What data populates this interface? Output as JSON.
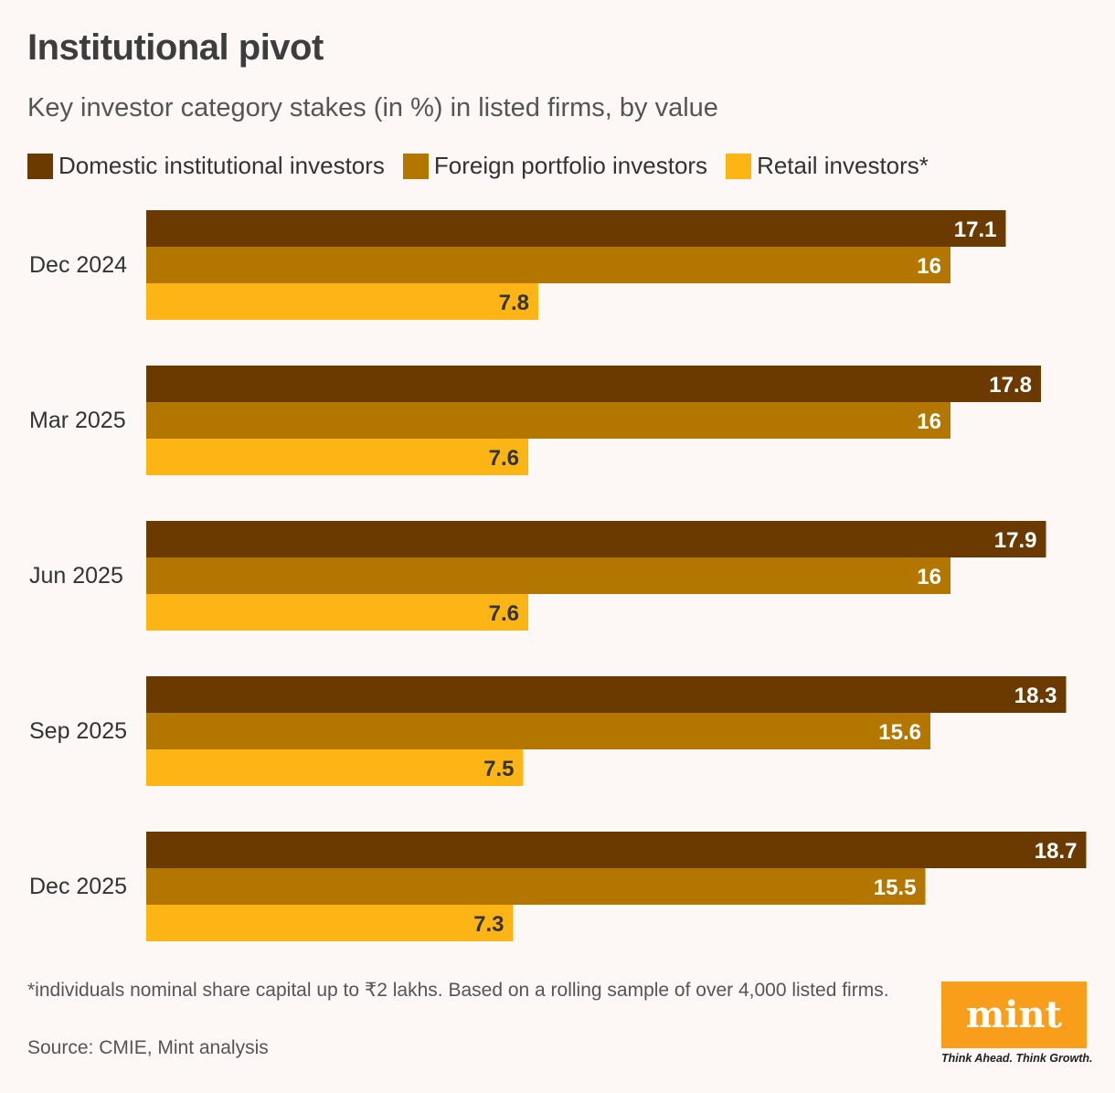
{
  "header": {
    "title": "Institutional pivot",
    "subtitle": "Key investor category stakes (in %) in listed firms, by value"
  },
  "chart_data": {
    "type": "bar",
    "orientation": "horizontal",
    "title": "Institutional pivot",
    "subtitle": "Key investor category stakes (in %) in listed firms, by value",
    "categories": [
      "Dec 2024",
      "Mar 2025",
      "Jun 2025",
      "Sep 2025",
      "Dec 2025"
    ],
    "series": [
      {
        "name": "Domestic institutional investors",
        "color": "#6b3a00",
        "label_color": "#ffffff",
        "values": [
          17.1,
          17.8,
          17.9,
          18.3,
          18.7
        ]
      },
      {
        "name": "Foreign portfolio investors",
        "color": "#b37700",
        "label_color": "#ffffff",
        "values": [
          16,
          16,
          16,
          15.6,
          15.5
        ]
      },
      {
        "name": "Retail investors*",
        "color": "#fdb515",
        "label_color": "#333333",
        "values": [
          7.8,
          7.6,
          7.6,
          7.5,
          7.3
        ]
      }
    ],
    "xlim": [
      0,
      18.7
    ],
    "grid": false,
    "legend": "top",
    "data_labels": true
  },
  "footer": {
    "footnote": "*individuals nominal share capital up to ₹2 lakhs. Based on a rolling sample of over 4,000 listed firms.",
    "source": "Source: CMIE, Mint analysis",
    "logo_text": "mint",
    "tagline": "Think Ahead. Think Growth."
  }
}
